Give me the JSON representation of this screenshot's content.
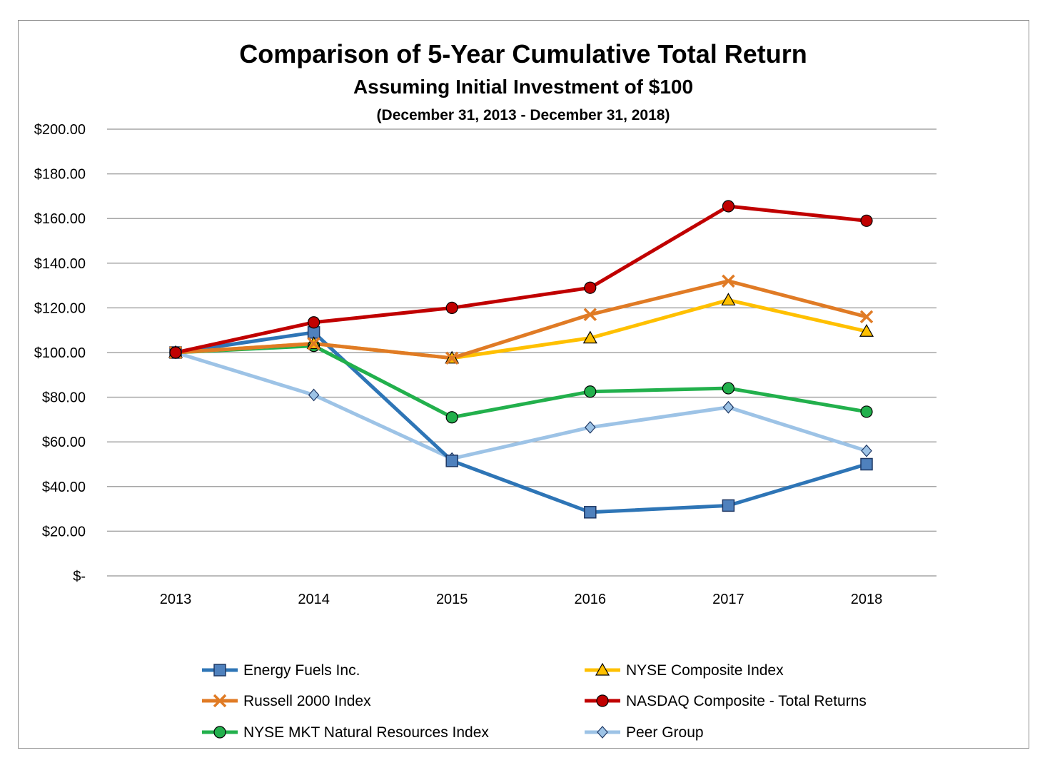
{
  "chart_data": {
    "type": "line",
    "title": "Comparison of 5-Year Cumulative Total Return",
    "subtitle": "Assuming Initial Investment of $100",
    "subsubtitle": "(December 31, 2013 - December 31, 2018)",
    "categories": [
      "2013",
      "2014",
      "2015",
      "2016",
      "2017",
      "2018"
    ],
    "ylim": [
      0,
      200
    ],
    "yticks": [
      0,
      20,
      40,
      60,
      80,
      100,
      120,
      140,
      160,
      180,
      200
    ],
    "ytick_labels": [
      "$-",
      "$20.00",
      "$40.00",
      "$60.00",
      "$80.00",
      "$100.00",
      "$120.00",
      "$140.00",
      "$160.00",
      "$180.00",
      "$200.00"
    ],
    "grid": true,
    "legend_position": "bottom",
    "series": [
      {
        "name": "Energy Fuels Inc.",
        "color": "#2e75b6",
        "marker": "square",
        "marker_fill": "#4f81bd",
        "values": [
          100,
          109,
          51.5,
          28.5,
          31.5,
          50
        ]
      },
      {
        "name": "NYSE Composite Index",
        "color": "#ffc000",
        "marker": "triangle",
        "marker_fill": "#ffc000",
        "values": [
          100,
          104,
          97.5,
          106.5,
          123.5,
          109.5
        ]
      },
      {
        "name": "Russell 2000 Index",
        "color": "#e07b25",
        "marker": "x",
        "marker_fill": "#e07b25",
        "values": [
          100,
          104,
          97.5,
          117,
          132,
          116
        ]
      },
      {
        "name": "NASDAQ Composite - Total Returns",
        "color": "#c00000",
        "marker": "circle",
        "marker_fill": "#c00000",
        "values": [
          100,
          113.5,
          120,
          129,
          165.5,
          159
        ]
      },
      {
        "name": "NYSE MKT Natural Resources Index",
        "color": "#22b04c",
        "marker": "circle",
        "marker_fill": "#22b04c",
        "values": [
          100,
          103,
          71,
          82.5,
          84,
          73.5
        ]
      },
      {
        "name": "Peer Group",
        "color": "#9dc3e6",
        "marker": "diamond",
        "marker_fill": "#9dc3e6",
        "values": [
          100,
          81,
          52.5,
          66.5,
          75.5,
          56
        ]
      }
    ]
  }
}
